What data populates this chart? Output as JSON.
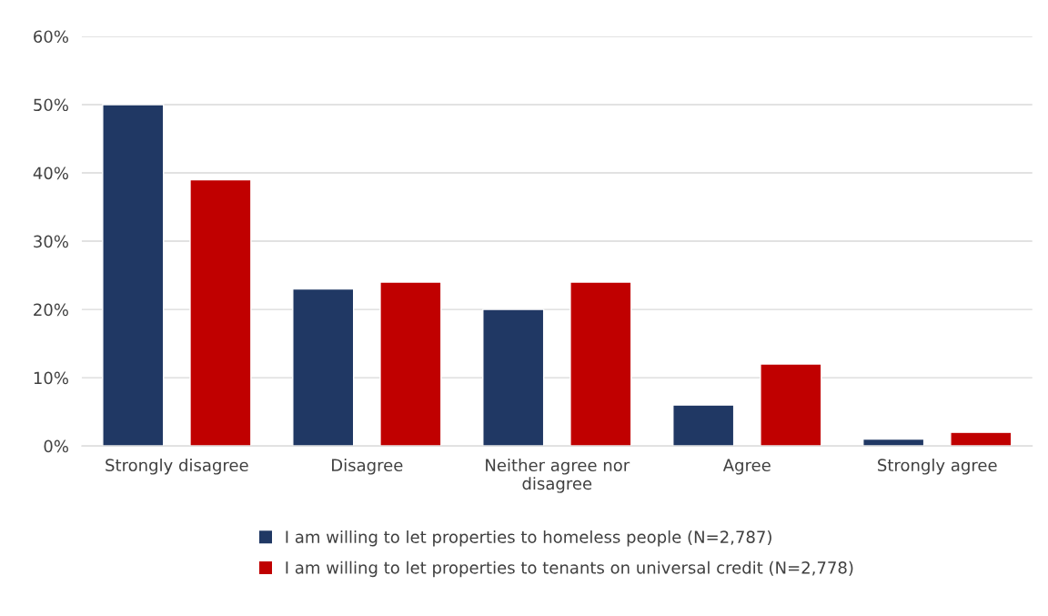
{
  "chart_data": {
    "type": "bar",
    "categories": [
      "Strongly disagree",
      "Disagree",
      "Neither agree nor disagree",
      "Agree",
      "Strongly agree"
    ],
    "series": [
      {
        "name": "I am willing to let properties to homeless people (N=2,787)",
        "color": "#203864",
        "values": [
          50,
          23,
          20,
          6,
          1
        ]
      },
      {
        "name": "I am willing to let properties to tenants on universal credit (N=2,778)",
        "color": "#c00000",
        "values": [
          39,
          24,
          24,
          12,
          2
        ]
      }
    ],
    "ylim": [
      0,
      60
    ],
    "yticks": [
      {
        "value": 0,
        "label": "0%"
      },
      {
        "value": 10,
        "label": "10%"
      },
      {
        "value": 20,
        "label": "20%"
      },
      {
        "value": 30,
        "label": "30%"
      },
      {
        "value": 40,
        "label": "40%"
      },
      {
        "value": 50,
        "label": "50%"
      },
      {
        "value": 60,
        "label": "60%"
      }
    ],
    "grid": "y",
    "legend": "bottom"
  }
}
